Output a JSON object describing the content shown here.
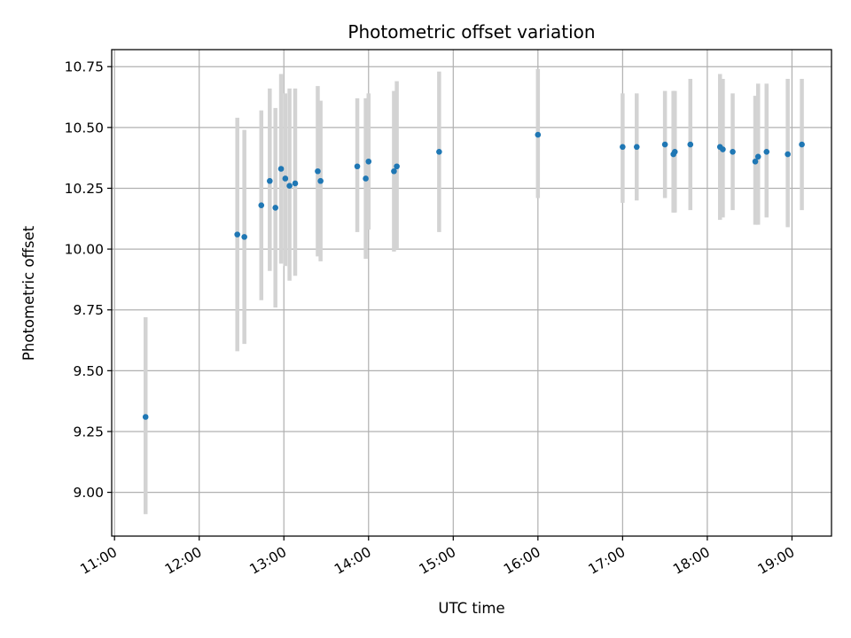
{
  "chart_data": {
    "type": "scatter",
    "title": "Photometric offset variation",
    "xlabel": "UTC time",
    "ylabel": "Photometric offset",
    "x_unit": "UTC time (HH:MM)",
    "xlim": [
      "10:58",
      "19:28"
    ],
    "ylim": [
      8.82,
      10.82
    ],
    "x_ticks": [
      "11:00",
      "12:00",
      "13:00",
      "14:00",
      "15:00",
      "16:00",
      "17:00",
      "18:00",
      "19:00"
    ],
    "y_ticks": [
      "9.00",
      "9.25",
      "9.50",
      "9.75",
      "10.00",
      "10.25",
      "10.50",
      "10.75"
    ],
    "grid": true,
    "marker_color": "#1f77b4",
    "errorbar_color": "#d3d3d3",
    "series": [
      {
        "points": [
          {
            "x": "11:22",
            "y": 9.31,
            "ylo": 8.91,
            "yhi": 9.72
          },
          {
            "x": "12:27",
            "y": 10.06,
            "ylo": 9.58,
            "yhi": 10.54
          },
          {
            "x": "12:32",
            "y": 10.05,
            "ylo": 9.61,
            "yhi": 10.49
          },
          {
            "x": "12:44",
            "y": 10.18,
            "ylo": 9.79,
            "yhi": 10.57
          },
          {
            "x": "12:50",
            "y": 10.28,
            "ylo": 9.91,
            "yhi": 10.66
          },
          {
            "x": "12:54",
            "y": 10.17,
            "ylo": 9.76,
            "yhi": 10.58
          },
          {
            "x": "12:58",
            "y": 10.33,
            "ylo": 9.94,
            "yhi": 10.72
          },
          {
            "x": "13:01",
            "y": 10.29,
            "ylo": 9.93,
            "yhi": 10.64
          },
          {
            "x": "13:04",
            "y": 10.26,
            "ylo": 9.87,
            "yhi": 10.66
          },
          {
            "x": "13:08",
            "y": 10.27,
            "ylo": 9.89,
            "yhi": 10.66
          },
          {
            "x": "13:24",
            "y": 10.32,
            "ylo": 9.97,
            "yhi": 10.67
          },
          {
            "x": "13:26",
            "y": 10.28,
            "ylo": 9.95,
            "yhi": 10.61
          },
          {
            "x": "13:52",
            "y": 10.34,
            "ylo": 10.07,
            "yhi": 10.62
          },
          {
            "x": "13:58",
            "y": 10.29,
            "ylo": 9.96,
            "yhi": 10.62
          },
          {
            "x": "14:00",
            "y": 10.36,
            "ylo": 10.08,
            "yhi": 10.64
          },
          {
            "x": "14:18",
            "y": 10.32,
            "ylo": 9.99,
            "yhi": 10.65
          },
          {
            "x": "14:20",
            "y": 10.34,
            "ylo": 10.0,
            "yhi": 10.69
          },
          {
            "x": "14:50",
            "y": 10.4,
            "ylo": 10.07,
            "yhi": 10.73
          },
          {
            "x": "16:00",
            "y": 10.47,
            "ylo": 10.21,
            "yhi": 10.74
          },
          {
            "x": "17:00",
            "y": 10.42,
            "ylo": 10.19,
            "yhi": 10.64
          },
          {
            "x": "17:10",
            "y": 10.42,
            "ylo": 10.2,
            "yhi": 10.64
          },
          {
            "x": "17:30",
            "y": 10.43,
            "ylo": 10.21,
            "yhi": 10.65
          },
          {
            "x": "17:36",
            "y": 10.39,
            "ylo": 10.15,
            "yhi": 10.65
          },
          {
            "x": "17:37",
            "y": 10.4,
            "ylo": 10.15,
            "yhi": 10.65
          },
          {
            "x": "17:48",
            "y": 10.43,
            "ylo": 10.16,
            "yhi": 10.7
          },
          {
            "x": "18:09",
            "y": 10.42,
            "ylo": 10.12,
            "yhi": 10.72
          },
          {
            "x": "18:11",
            "y": 10.41,
            "ylo": 10.13,
            "yhi": 10.7
          },
          {
            "x": "18:18",
            "y": 10.4,
            "ylo": 10.16,
            "yhi": 10.64
          },
          {
            "x": "18:34",
            "y": 10.36,
            "ylo": 10.1,
            "yhi": 10.63
          },
          {
            "x": "18:36",
            "y": 10.38,
            "ylo": 10.1,
            "yhi": 10.68
          },
          {
            "x": "18:42",
            "y": 10.4,
            "ylo": 10.13,
            "yhi": 10.68
          },
          {
            "x": "18:57",
            "y": 10.39,
            "ylo": 10.09,
            "yhi": 10.7
          },
          {
            "x": "19:07",
            "y": 10.43,
            "ylo": 10.16,
            "yhi": 10.7
          }
        ]
      }
    ]
  }
}
